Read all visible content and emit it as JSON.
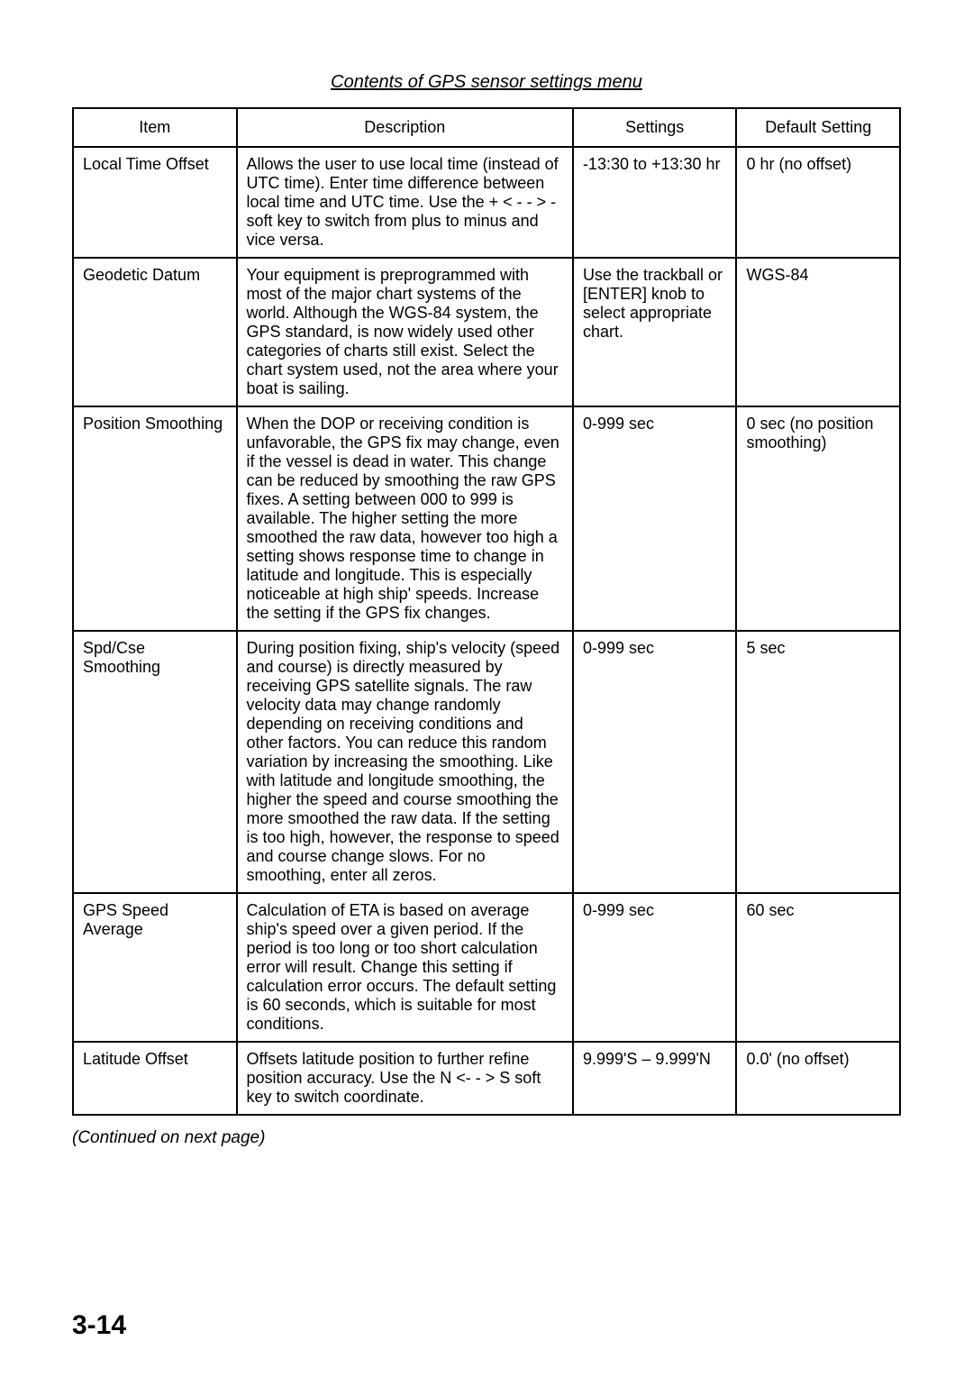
{
  "title": "Contents of GPS sensor settings menu",
  "headers": {
    "item": "Item",
    "description": "Description",
    "settings": "Settings",
    "default": "Default Setting"
  },
  "rows": [
    {
      "item": "Local Time Offset",
      "description": "Allows the user to use local time (instead of UTC time). Enter time difference between local time and UTC time. Use the + < - - > - soft key to switch from plus to minus and vice versa.",
      "settings": "-13:30 to +13:30 hr",
      "default": "0 hr (no offset)"
    },
    {
      "item": "Geodetic Datum",
      "description": "Your equipment is preprogrammed with most of the major chart systems of the world. Although the WGS-84 system, the GPS standard, is now widely used other categories of charts still exist. Select the chart system used, not the area where your boat is sailing.",
      "settings": "Use the trackball or [ENTER] knob to select appropriate chart.",
      "default": "WGS-84"
    },
    {
      "item": "Position Smoothing",
      "description": "When the DOP or receiving condition is unfavorable, the GPS fix may change, even if the vessel is dead in water. This change can be reduced by smoothing the raw GPS fixes. A setting between 000 to 999 is available. The higher setting the more smoothed the raw data, however too high a setting shows response time to change in latitude and longitude. This is especially noticeable at high ship' speeds. Increase the setting if the GPS fix changes.",
      "settings": "0-999 sec",
      "default": "0 sec (no position smoothing)"
    },
    {
      "item": "Spd/Cse Smoothing",
      "description": "During position fixing, ship's velocity (speed and course) is directly measured by receiving GPS satellite signals. The raw velocity data may change randomly depending on receiving conditions and other factors. You can reduce this random variation by increasing the smoothing. Like with latitude and longitude smoothing, the higher the speed and course smoothing the more smoothed the raw data. If the setting is too high, however, the response to speed and course change slows. For no smoothing, enter all zeros.",
      "settings": "0-999 sec",
      "default": "5 sec"
    },
    {
      "item": "GPS Speed Average",
      "description": "Calculation of ETA is based on average ship's speed over a given period. If the period is too long or too short calculation error will result. Change this setting if calculation error occurs. The default setting is 60 seconds, which is suitable for most conditions.",
      "settings": "0-999 sec",
      "default": "60 sec"
    },
    {
      "item": "Latitude Offset",
      "description": "Offsets latitude position to further refine position accuracy. Use the N <- - > S soft key to switch coordinate.",
      "settings": "9.999'S – 9.999'N",
      "default": "0.0' (no offset)"
    }
  ],
  "continued_text": "(Continued on next page)",
  "page_number": "3-14"
}
